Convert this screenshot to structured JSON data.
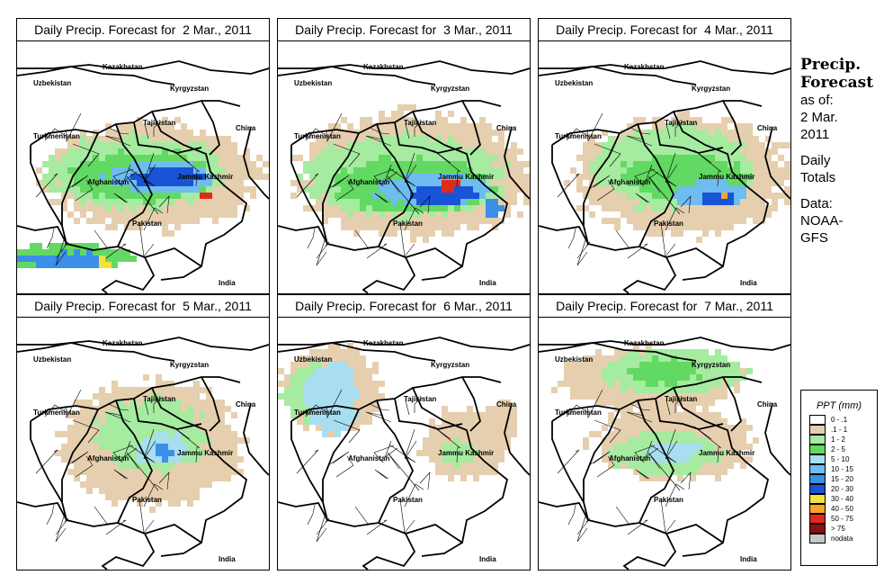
{
  "panels": [
    {
      "title": "Daily Precip. Forecast for  2 Mar., 2011"
    },
    {
      "title": "Daily Precip. Forecast for  3 Mar., 2011"
    },
    {
      "title": "Daily Precip. Forecast for  4 Mar., 2011"
    },
    {
      "title": "Daily Precip. Forecast for  5 Mar., 2011"
    },
    {
      "title": "Daily Precip. Forecast for  6 Mar., 2011"
    },
    {
      "title": "Daily Precip. Forecast for  7 Mar., 2011"
    }
  ],
  "map_labels": {
    "kazakhstan": "Kazakhstan",
    "uzbekistan": "Uzbekistan",
    "kyrgyzstan": "Kyrgyzstan",
    "tajikistan": "Tajikistan",
    "turkmenistan": "Turkmenistan",
    "china": "China",
    "jammu_kashmir": "Jammu Kashmir",
    "afghanistan": "Afghanistan",
    "pakistan": "Pakistan",
    "india": "India"
  },
  "side": {
    "title1": "Precip.",
    "title2": "Forecast",
    "asof": "as of:",
    "date1": "2 Mar.",
    "date2": "2011",
    "totals1": "Daily",
    "totals2": "Totals",
    "data1": "Data:",
    "data2": "NOAA-",
    "data3": "GFS"
  },
  "legend": {
    "title": "PPT (mm)",
    "items": [
      {
        "label": "0 - .1",
        "color": "#ffffff"
      },
      {
        "label": ".1 - 1",
        "color": "#e6cfae"
      },
      {
        "label": "1 - 2",
        "color": "#a5eba0"
      },
      {
        "label": "2 - 5",
        "color": "#62d962"
      },
      {
        "label": "5 - 10",
        "color": "#a8def0"
      },
      {
        "label": "10 - 15",
        "color": "#6fbcf0"
      },
      {
        "label": "15 - 20",
        "color": "#3b8fe6"
      },
      {
        "label": "20 - 30",
        "color": "#1a54d6"
      },
      {
        "label": "30 - 40",
        "color": "#f2e23a"
      },
      {
        "label": "40 - 50",
        "color": "#f5a623"
      },
      {
        "label": "50 - 75",
        "color": "#e02b1a"
      },
      {
        "label": "> 75",
        "color": "#8b1010"
      },
      {
        "label": "nodata",
        "color": "#c8c8c8"
      }
    ]
  }
}
